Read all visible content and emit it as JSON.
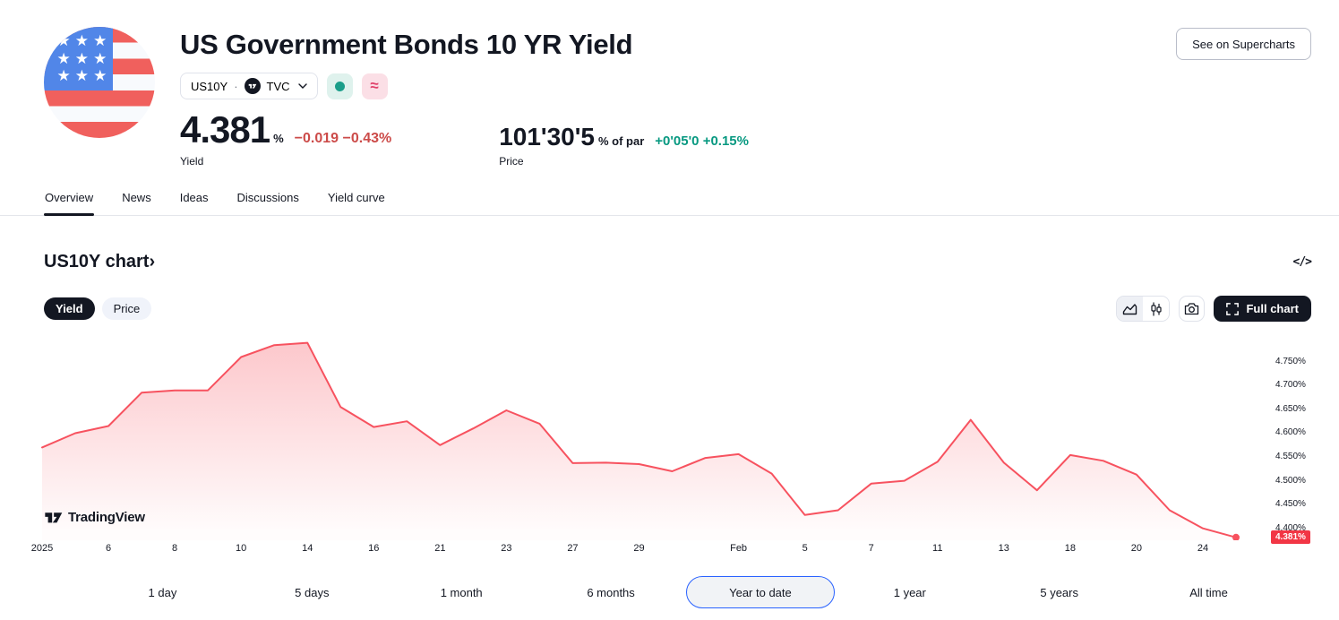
{
  "header": {
    "title": "US Government Bonds 10 YR Yield",
    "symbol_button": {
      "symbol": "US10Y",
      "separator": "·",
      "exchange": "TVC"
    },
    "approx_badge": "≈",
    "yield_quote": {
      "value": "4.381",
      "unit": "%",
      "change": "−0.019 −0.43%",
      "label": "Yield"
    },
    "price_quote": {
      "value": "101'30'5",
      "unit": "% of par",
      "change": "+0'05'0 +0.15%",
      "label": "Price"
    },
    "supercharts_button": "See on Supercharts"
  },
  "tabs": [
    {
      "label": "Overview",
      "active": true
    },
    {
      "label": "News",
      "active": false
    },
    {
      "label": "Ideas",
      "active": false
    },
    {
      "label": "Discussions",
      "active": false
    },
    {
      "label": "Yield curve",
      "active": false
    }
  ],
  "chart_section": {
    "title": "US10Y chart",
    "title_chevron": "›",
    "embed_icon_label": "</>",
    "series_toggle": [
      {
        "label": "Yield",
        "active": true
      },
      {
        "label": "Price",
        "active": false
      }
    ],
    "full_chart_label": "Full chart",
    "watermark": "TradingView",
    "last_value_label": "4.381%"
  },
  "chart_data": {
    "type": "area",
    "title": "US10Y yield, year to date",
    "x": [
      "Jan 2",
      "Jan 3",
      "Jan 6",
      "Jan 7",
      "Jan 8",
      "Jan 9",
      "Jan 10",
      "Jan 13",
      "Jan 14",
      "Jan 15",
      "Jan 16",
      "Jan 17",
      "Jan 21",
      "Jan 22",
      "Jan 23",
      "Jan 24",
      "Jan 27",
      "Jan 28",
      "Jan 29",
      "Jan 30",
      "Jan 31",
      "Feb 3",
      "Feb 4",
      "Feb 5",
      "Feb 6",
      "Feb 7",
      "Feb 10",
      "Feb 11",
      "Feb 12",
      "Feb 13",
      "Feb 14",
      "Feb 18",
      "Feb 19",
      "Feb 20",
      "Feb 21",
      "Feb 24",
      "Feb 25"
    ],
    "values": [
      4.57,
      4.6,
      4.615,
      4.685,
      4.69,
      4.69,
      4.76,
      4.785,
      4.79,
      4.655,
      4.613,
      4.625,
      4.575,
      4.61,
      4.648,
      4.62,
      4.537,
      4.538,
      4.535,
      4.52,
      4.548,
      4.556,
      4.515,
      4.428,
      4.438,
      4.494,
      4.5,
      4.54,
      4.628,
      4.538,
      4.48,
      4.554,
      4.542,
      4.513,
      4.438,
      4.4,
      4.381
    ],
    "x_ticks": [
      {
        "index": 0,
        "label": "2025"
      },
      {
        "index": 2,
        "label": "6"
      },
      {
        "index": 4,
        "label": "8"
      },
      {
        "index": 6,
        "label": "10"
      },
      {
        "index": 8,
        "label": "14"
      },
      {
        "index": 10,
        "label": "16"
      },
      {
        "index": 12,
        "label": "21"
      },
      {
        "index": 14,
        "label": "23"
      },
      {
        "index": 16,
        "label": "27"
      },
      {
        "index": 18,
        "label": "29"
      },
      {
        "index": 21,
        "label": "Feb"
      },
      {
        "index": 23,
        "label": "5"
      },
      {
        "index": 25,
        "label": "7"
      },
      {
        "index": 27,
        "label": "11"
      },
      {
        "index": 29,
        "label": "13"
      },
      {
        "index": 31,
        "label": "18"
      },
      {
        "index": 33,
        "label": "20"
      },
      {
        "index": 35,
        "label": "24"
      }
    ],
    "y_ticks": [
      4.75,
      4.7,
      4.65,
      4.6,
      4.55,
      4.5,
      4.45,
      4.4
    ],
    "ylim": [
      4.375,
      4.808
    ],
    "last_value": 4.381,
    "grid": false,
    "legend": "none",
    "line_color": "#F7525F",
    "badge_color": "#F23645"
  },
  "ranges": [
    {
      "label": "1 day",
      "active": false
    },
    {
      "label": "5 days",
      "active": false
    },
    {
      "label": "1 month",
      "active": false
    },
    {
      "label": "6 months",
      "active": false
    },
    {
      "label": "Year to date",
      "active": true
    },
    {
      "label": "1 year",
      "active": false
    },
    {
      "label": "5 years",
      "active": false
    },
    {
      "label": "All time",
      "active": false
    }
  ],
  "colors": {
    "down_red": "#CC4B49",
    "up_green": "#089981",
    "line_red": "#F7525F",
    "axis_badge_red": "#F23645",
    "dark": "#131722",
    "border": "#E0E3EB",
    "selected_range_border": "#2962FF"
  }
}
